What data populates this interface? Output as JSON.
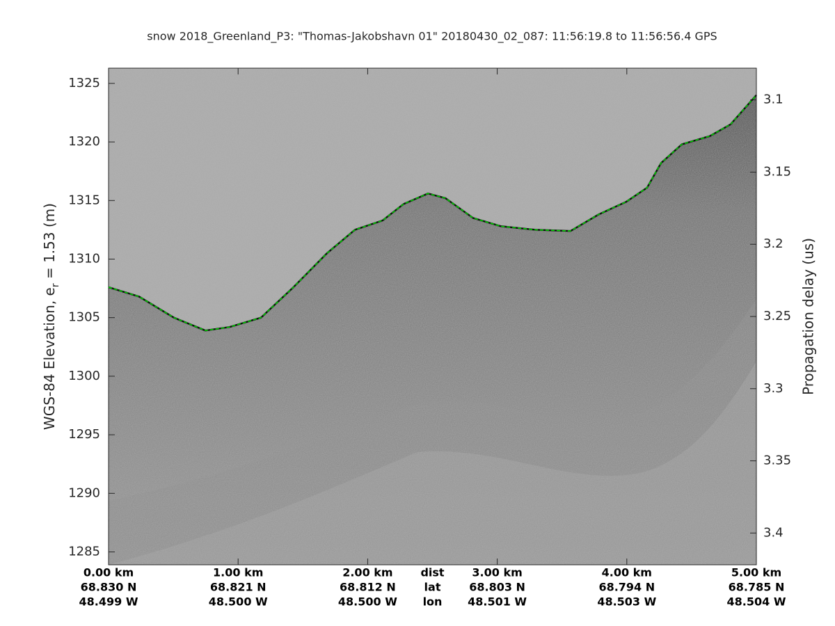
{
  "chart_data": {
    "type": "line",
    "title": "snow 2018_Greenland_P3: \"Thomas-Jakobshavn 01\"  20180430_02_087: 11:56:19.8 to 11:56:56.4 GPS",
    "ylabel": [
      "WGS-84 Elevation, e",
      "r",
      " = 1.53 (m)"
    ],
    "y2label": "Propagation delay (us)",
    "xlim": [
      0,
      5
    ],
    "xticks": [
      {
        "value": 0,
        "label": "0.00 km"
      },
      {
        "value": 1,
        "label": "1.00 km"
      },
      {
        "value": 2,
        "label": "2.00 km"
      },
      {
        "value": 3,
        "label": "3.00 km"
      },
      {
        "value": 4,
        "label": "4.00 km"
      },
      {
        "value": 5,
        "label": "5.00 km"
      }
    ],
    "xtick_lat_labels": [
      "68.830 N",
      "68.821 N",
      "68.812 N",
      "68.803 N",
      "68.794 N",
      "68.785 N"
    ],
    "xtick_lon_labels": [
      "48.499 W",
      "48.500 W",
      "48.500 W",
      "48.501 W",
      "48.503 W",
      "48.504 W"
    ],
    "xtick_row_names": [
      "dist",
      "lat",
      "lon"
    ],
    "ylim": [
      1283.9,
      1326.3
    ],
    "yticks": [
      1285,
      1290,
      1295,
      1300,
      1305,
      1310,
      1315,
      1320,
      1325
    ],
    "y2lim": [
      3.422,
      3.078
    ],
    "y2ticks": [
      3.1,
      3.15,
      3.2,
      3.25,
      3.3,
      3.35,
      3.4
    ],
    "x": [
      0,
      0.236,
      0.505,
      0.747,
      0.934,
      1.176,
      1.418,
      1.686,
      1.901,
      2.116,
      2.277,
      2.465,
      2.6,
      2.814,
      3.029,
      3.297,
      3.566,
      3.781,
      3.996,
      4.157,
      4.264,
      4.425,
      4.64,
      4.801,
      5
    ],
    "values": [
      1307.6,
      1306.8,
      1305,
      1303.9,
      1304.2,
      1305,
      1307.5,
      1310.5,
      1312.5,
      1313.3,
      1314.7,
      1315.6,
      1315.2,
      1313.5,
      1312.8,
      1312.5,
      1312.4,
      1313.8,
      1314.9,
      1316.1,
      1318.2,
      1319.8,
      1320.5,
      1321.5,
      1324
    ],
    "color": "#00dd00"
  }
}
